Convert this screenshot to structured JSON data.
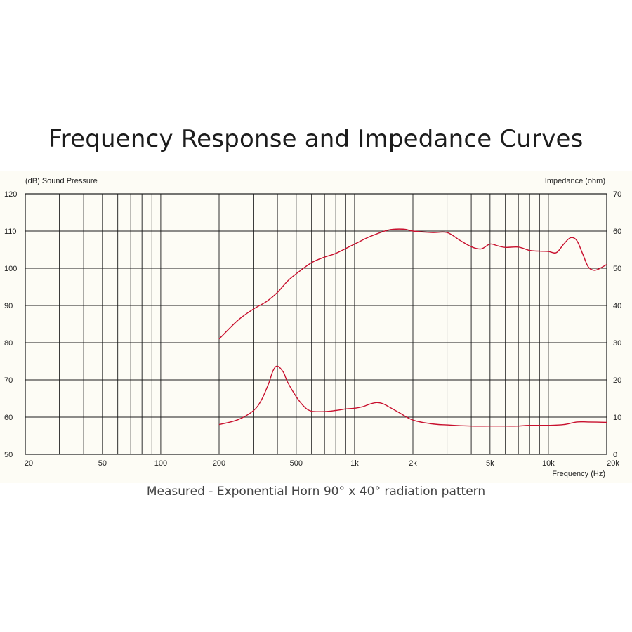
{
  "page": {
    "title": "Frequency Response and Impedance Curves",
    "caption": "Measured - Exponential Horn 90° x 40° radiation pattern"
  },
  "colors": {
    "curve": "#c8102e",
    "grid": "#1a1a1a",
    "background": "#fdfcf5"
  },
  "chart_data": {
    "type": "line",
    "x_scale": "log",
    "xlim": [
      20,
      20000
    ],
    "ylim_left": [
      50,
      120
    ],
    "ylim_right": [
      0,
      70
    ],
    "ylabel_left": "(dB) Sound Pressure",
    "ylabel_right": "Impedance (ohm)",
    "xlabel": "Frequency (Hz)",
    "x_ticks": [
      {
        "value": 20,
        "label": "20"
      },
      {
        "value": 50,
        "label": "50"
      },
      {
        "value": 100,
        "label": "100"
      },
      {
        "value": 200,
        "label": "200"
      },
      {
        "value": 500,
        "label": "500"
      },
      {
        "value": 1000,
        "label": "1k"
      },
      {
        "value": 2000,
        "label": "2k"
      },
      {
        "value": 5000,
        "label": "5k"
      },
      {
        "value": 10000,
        "label": "10k"
      },
      {
        "value": 20000,
        "label": "20k"
      }
    ],
    "y_ticks_left": [
      "50",
      "60",
      "70",
      "80",
      "90",
      "100",
      "110",
      "120"
    ],
    "y_ticks_right": [
      "0",
      "10",
      "20",
      "30",
      "40",
      "50",
      "60",
      "70"
    ],
    "grid": true,
    "series": [
      {
        "axis": "left",
        "x": [
          200,
          250,
          300,
          350,
          400,
          450,
          500,
          600,
          700,
          800,
          1000,
          1200,
          1500,
          1800,
          2000,
          2500,
          3000,
          3500,
          4000,
          4500,
          5000,
          5500,
          6000,
          7000,
          8000,
          9000,
          10000,
          11000,
          12000,
          13000,
          14000,
          15000,
          16000,
          17000,
          18000,
          20000
        ],
        "values": [
          81,
          86,
          89,
          91,
          93.5,
          96.5,
          98.5,
          101.5,
          103,
          104,
          106.5,
          108.5,
          110.3,
          110.5,
          110,
          109.6,
          109.6,
          107.5,
          105.8,
          105.2,
          106.5,
          106,
          105.6,
          105.7,
          104.8,
          104.6,
          104.5,
          104.2,
          106.5,
          108.2,
          107.5,
          104,
          100.5,
          99.5,
          99.7,
          101
        ]
      },
      {
        "axis": "right",
        "x": [
          200,
          250,
          300,
          330,
          360,
          380,
          400,
          430,
          450,
          500,
          550,
          600,
          700,
          800,
          900,
          1000,
          1100,
          1200,
          1300,
          1400,
          1500,
          1700,
          2000,
          2500,
          3000,
          4000,
          5000,
          6000,
          7000,
          8000,
          10000,
          12000,
          14000,
          16000,
          20000
        ],
        "values": [
          8,
          9.3,
          11.7,
          14.5,
          19,
          22.5,
          23.7,
          22,
          19.5,
          15.5,
          12.8,
          11.6,
          11.5,
          11.8,
          12.2,
          12.4,
          12.8,
          13.5,
          13.9,
          13.6,
          12.8,
          11.2,
          9.2,
          8.2,
          7.9,
          7.6,
          7.6,
          7.6,
          7.6,
          7.8,
          7.8,
          8,
          8.7,
          8.7,
          8.6
        ]
      }
    ]
  }
}
